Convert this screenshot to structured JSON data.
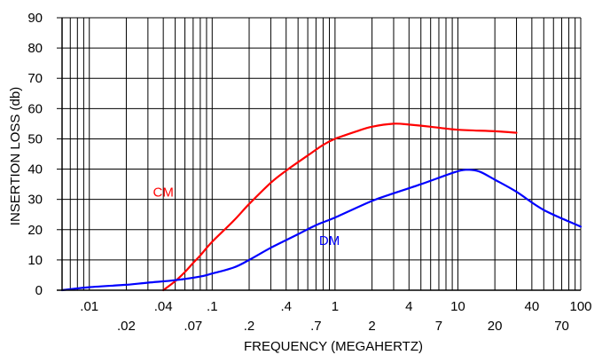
{
  "chart_data": {
    "type": "line",
    "xlabel": "FREQUENCY (MEGAHERTZ)",
    "ylabel": "INSERTION LOSS (db)",
    "x_scale": "log",
    "xlim": [
      0.006,
      100
    ],
    "ylim": [
      0,
      90
    ],
    "grid": true,
    "y_ticks": [
      0,
      10,
      20,
      30,
      40,
      50,
      60,
      70,
      80,
      90
    ],
    "x_ticks_upper": [
      {
        "value": 0.01,
        "label": ".01"
      },
      {
        "value": 0.04,
        "label": ".04"
      },
      {
        "value": 0.1,
        "label": ".1"
      },
      {
        "value": 0.4,
        "label": ".4"
      },
      {
        "value": 1,
        "label": "1"
      },
      {
        "value": 4,
        "label": "4"
      },
      {
        "value": 10,
        "label": "10"
      },
      {
        "value": 40,
        "label": "40"
      },
      {
        "value": 100,
        "label": "100"
      }
    ],
    "x_ticks_lower": [
      {
        "value": 0.02,
        "label": ".02"
      },
      {
        "value": 0.07,
        "label": ".07"
      },
      {
        "value": 0.2,
        "label": ".2"
      },
      {
        "value": 0.7,
        "label": ".7"
      },
      {
        "value": 2,
        "label": "2"
      },
      {
        "value": 7,
        "label": "7"
      },
      {
        "value": 20,
        "label": "20"
      },
      {
        "value": 70,
        "label": "70"
      }
    ],
    "series": [
      {
        "name": "CM",
        "color": "#ff0000",
        "label_at": [
          0.04,
          31
        ],
        "points": [
          [
            0.04,
            0
          ],
          [
            0.05,
            3
          ],
          [
            0.06,
            6
          ],
          [
            0.07,
            9
          ],
          [
            0.08,
            11.5
          ],
          [
            0.1,
            16
          ],
          [
            0.15,
            23
          ],
          [
            0.2,
            28.5
          ],
          [
            0.3,
            35.5
          ],
          [
            0.4,
            39.5
          ],
          [
            0.6,
            44.5
          ],
          [
            0.8,
            48
          ],
          [
            1,
            50
          ],
          [
            1.5,
            52.5
          ],
          [
            2,
            54
          ],
          [
            3,
            55
          ],
          [
            4,
            54.7
          ],
          [
            6,
            54
          ],
          [
            10,
            53
          ],
          [
            20,
            52.5
          ],
          [
            30,
            52
          ]
        ]
      },
      {
        "name": "DM",
        "color": "#0000ff",
        "label_at": [
          0.9,
          15
        ],
        "points": [
          [
            0.006,
            0
          ],
          [
            0.01,
            1
          ],
          [
            0.02,
            1.8
          ],
          [
            0.03,
            2.5
          ],
          [
            0.05,
            3.3
          ],
          [
            0.08,
            4.5
          ],
          [
            0.1,
            5.5
          ],
          [
            0.15,
            7.5
          ],
          [
            0.2,
            10
          ],
          [
            0.3,
            14
          ],
          [
            0.5,
            18.5
          ],
          [
            0.7,
            21.5
          ],
          [
            1,
            24
          ],
          [
            2,
            29.5
          ],
          [
            3,
            32
          ],
          [
            5,
            35
          ],
          [
            8,
            38
          ],
          [
            10,
            39.3
          ],
          [
            12,
            39.8
          ],
          [
            15,
            39.2
          ],
          [
            20,
            36.5
          ],
          [
            30,
            32.5
          ],
          [
            50,
            26.5
          ],
          [
            100,
            21
          ]
        ]
      }
    ]
  }
}
